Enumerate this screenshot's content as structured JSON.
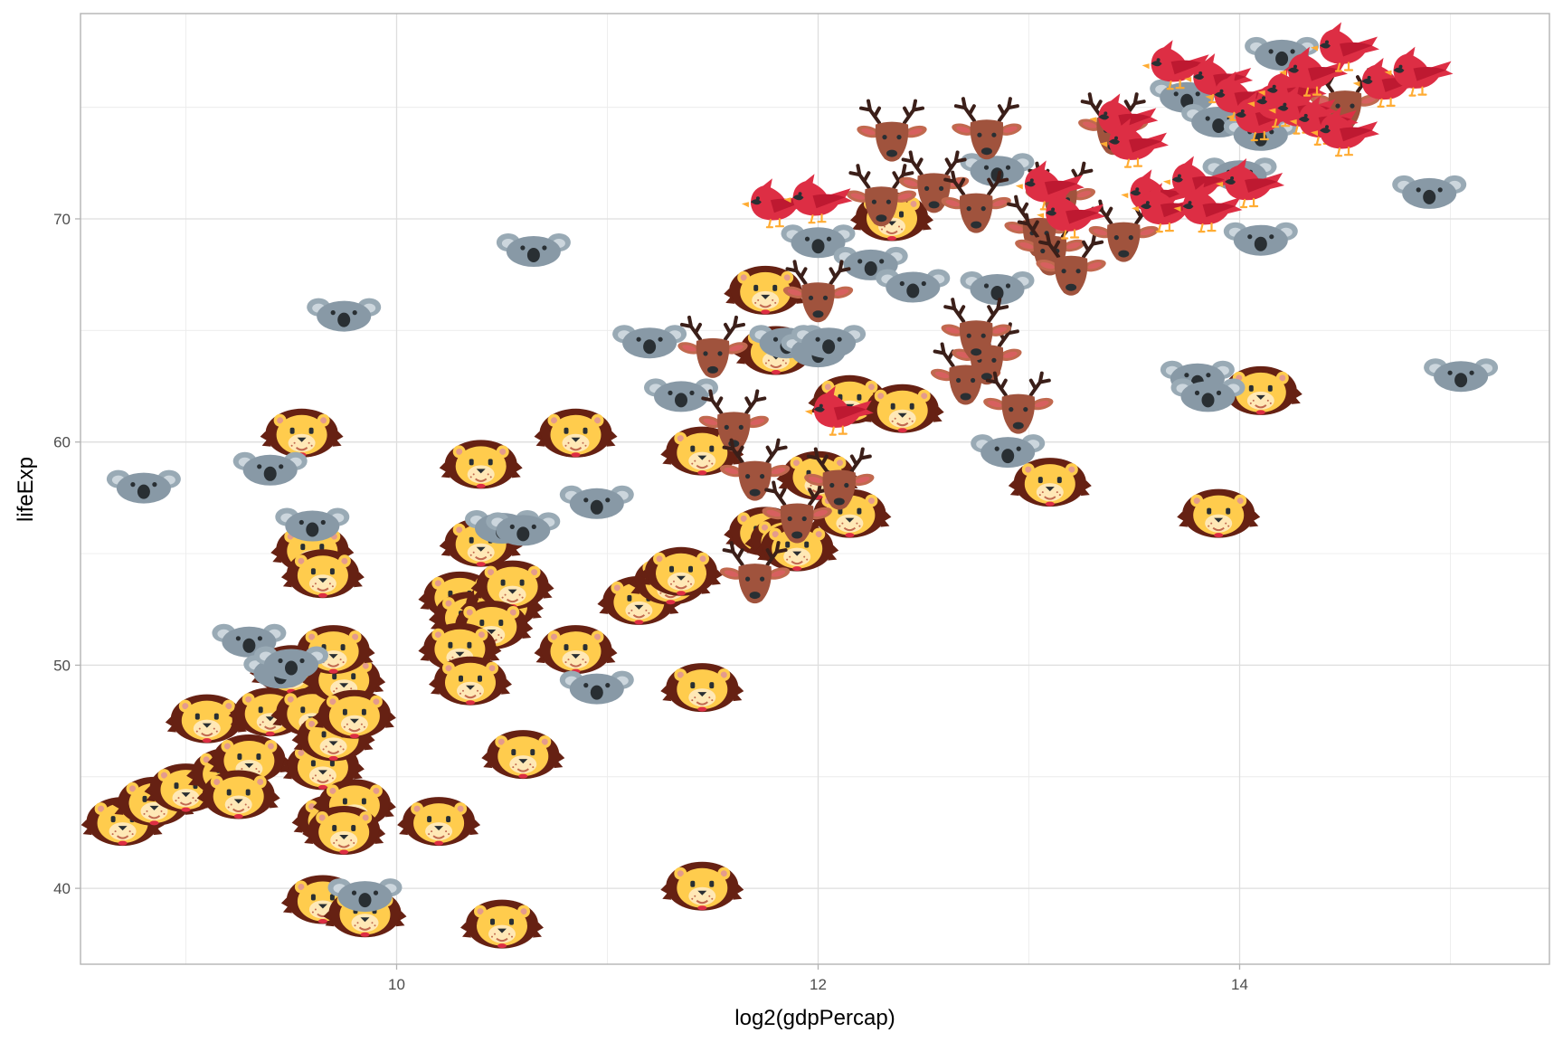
{
  "chart_data": {
    "type": "scatter",
    "title": "",
    "xlabel": "log2(gdpPercap)",
    "ylabel": "lifeExp",
    "xlim": [
      8.5,
      15.47
    ],
    "ylim": [
      36.6,
      79.2
    ],
    "x_ticks": [
      10,
      12,
      14
    ],
    "x_tick_labels": [
      "10",
      "12",
      "14"
    ],
    "y_ticks": [
      40,
      50,
      60,
      70
    ],
    "y_tick_labels": [
      "40",
      "50",
      "60",
      "70"
    ],
    "grid": true,
    "theme": "light",
    "legend": "none",
    "marker_type": "emoji icons by group",
    "series": [
      {
        "icon": "lion-icon",
        "points": [
          [
            8.7,
            43.0
          ],
          [
            8.85,
            43.9
          ],
          [
            9.0,
            44.5
          ],
          [
            9.1,
            47.6
          ],
          [
            9.2,
            45.2
          ],
          [
            9.3,
            45.8
          ],
          [
            9.25,
            44.2
          ],
          [
            9.4,
            47.9
          ],
          [
            9.5,
            49.8
          ],
          [
            9.6,
            47.9
          ],
          [
            9.65,
            45.5
          ],
          [
            9.7,
            46.8
          ],
          [
            9.75,
            49.4
          ],
          [
            9.7,
            50.7
          ],
          [
            9.8,
            47.8
          ],
          [
            9.6,
            55.2
          ],
          [
            9.65,
            54.1
          ],
          [
            9.55,
            60.4
          ],
          [
            9.7,
            43.1
          ],
          [
            9.8,
            43.8
          ],
          [
            9.75,
            42.6
          ],
          [
            10.2,
            43.0
          ],
          [
            9.65,
            39.5
          ],
          [
            9.85,
            38.9
          ],
          [
            10.4,
            59.0
          ],
          [
            10.4,
            55.5
          ],
          [
            10.3,
            53.1
          ],
          [
            10.35,
            52.2
          ],
          [
            10.5,
            52.7
          ],
          [
            10.55,
            53.6
          ],
          [
            10.45,
            51.8
          ],
          [
            10.3,
            50.8
          ],
          [
            10.35,
            49.3
          ],
          [
            10.6,
            46.0
          ],
          [
            10.5,
            38.4
          ],
          [
            10.85,
            60.4
          ],
          [
            10.85,
            50.7
          ],
          [
            11.15,
            52.9
          ],
          [
            11.3,
            53.8
          ],
          [
            11.35,
            54.2
          ],
          [
            11.45,
            49.0
          ],
          [
            11.45,
            40.1
          ],
          [
            11.45,
            59.6
          ],
          [
            11.75,
            56.0
          ],
          [
            11.85,
            55.6
          ],
          [
            11.9,
            55.3
          ],
          [
            11.8,
            64.1
          ],
          [
            11.75,
            66.8
          ],
          [
            12.0,
            58.5
          ],
          [
            12.15,
            56.8
          ],
          [
            12.15,
            61.9
          ],
          [
            12.4,
            61.5
          ],
          [
            12.35,
            70.1
          ],
          [
            13.1,
            58.2
          ],
          [
            13.9,
            56.8
          ],
          [
            14.1,
            62.3
          ]
        ]
      },
      {
        "icon": "koala-icon",
        "points": [
          [
            8.8,
            58.1
          ],
          [
            9.4,
            58.9
          ],
          [
            9.6,
            56.4
          ],
          [
            9.75,
            65.8
          ],
          [
            9.3,
            51.2
          ],
          [
            9.45,
            49.8
          ],
          [
            9.5,
            50.2
          ],
          [
            9.85,
            39.8
          ],
          [
            10.5,
            56.3
          ],
          [
            10.6,
            56.2
          ],
          [
            10.65,
            68.7
          ],
          [
            10.95,
            57.4
          ],
          [
            10.95,
            49.1
          ],
          [
            11.2,
            64.6
          ],
          [
            11.35,
            62.2
          ],
          [
            11.85,
            64.6
          ],
          [
            12.0,
            64.2
          ],
          [
            12.05,
            64.6
          ],
          [
            12.0,
            69.1
          ],
          [
            12.25,
            68.1
          ],
          [
            12.45,
            67.1
          ],
          [
            12.85,
            67.0
          ],
          [
            12.85,
            72.3
          ],
          [
            12.9,
            59.7
          ],
          [
            13.8,
            63.0
          ],
          [
            13.85,
            62.2
          ],
          [
            13.75,
            75.6
          ],
          [
            13.9,
            74.5
          ],
          [
            14.0,
            72.1
          ],
          [
            14.1,
            69.2
          ],
          [
            14.2,
            77.5
          ],
          [
            14.1,
            73.9
          ],
          [
            14.9,
            71.3
          ],
          [
            15.05,
            63.1
          ]
        ]
      },
      {
        "icon": "deer-icon",
        "points": [
          [
            11.5,
            63.8
          ],
          [
            11.6,
            60.5
          ],
          [
            11.7,
            58.3
          ],
          [
            11.7,
            53.7
          ],
          [
            11.9,
            56.4
          ],
          [
            12.0,
            66.3
          ],
          [
            12.1,
            57.9
          ],
          [
            12.3,
            70.6
          ],
          [
            12.35,
            73.5
          ],
          [
            12.55,
            71.2
          ],
          [
            12.75,
            70.3
          ],
          [
            12.8,
            73.6
          ],
          [
            12.7,
            62.6
          ],
          [
            12.8,
            63.5
          ],
          [
            12.75,
            64.6
          ],
          [
            12.95,
            61.3
          ],
          [
            13.05,
            69.2
          ],
          [
            13.1,
            68.4
          ],
          [
            13.15,
            70.7
          ],
          [
            13.2,
            67.5
          ],
          [
            13.4,
            73.8
          ],
          [
            13.45,
            69.0
          ],
          [
            14.5,
            74.9
          ]
        ]
      },
      {
        "icon": "cardinal-bird-icon",
        "points": [
          [
            11.8,
            70.6
          ],
          [
            12.0,
            70.8
          ],
          [
            12.1,
            61.3
          ],
          [
            13.1,
            71.4
          ],
          [
            13.2,
            70.1
          ],
          [
            13.45,
            74.4
          ],
          [
            13.5,
            73.3
          ],
          [
            13.6,
            71.0
          ],
          [
            13.65,
            70.4
          ],
          [
            13.8,
            71.6
          ],
          [
            13.85,
            70.4
          ],
          [
            13.7,
            76.8
          ],
          [
            13.9,
            76.2
          ],
          [
            14.0,
            75.4
          ],
          [
            14.1,
            74.5
          ],
          [
            14.2,
            75.1
          ],
          [
            14.25,
            75.6
          ],
          [
            14.3,
            74.8
          ],
          [
            14.35,
            76.5
          ],
          [
            14.4,
            74.3
          ],
          [
            14.5,
            77.6
          ],
          [
            14.5,
            73.8
          ],
          [
            14.7,
            76.0
          ],
          [
            14.85,
            76.5
          ],
          [
            14.05,
            71.5
          ]
        ]
      }
    ]
  }
}
